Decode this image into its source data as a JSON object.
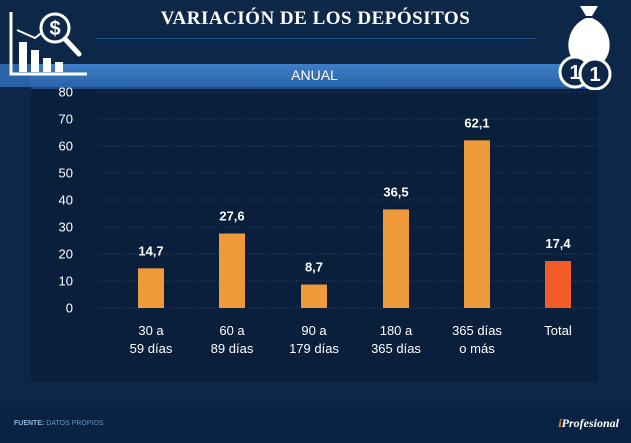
{
  "header": {
    "title": "VARIACIÓN DE LOS DEPÓSITOS",
    "subtitle": "ANUAL"
  },
  "footer": {
    "source_label": "FUENTE:",
    "source_text": "DATOS PROPIOS",
    "logo_prefix": "i",
    "logo_text": "Profesional"
  },
  "colors": {
    "bar": "#ef9a3a",
    "highlight": "#f25c26",
    "background": "#0d2748"
  },
  "chart_data": {
    "type": "bar",
    "title": "VARIACIÓN DE LOS DEPÓSITOS",
    "subtitle": "ANUAL",
    "xlabel": "",
    "ylabel": "",
    "ylim": [
      0,
      80
    ],
    "yticks": [
      0,
      10,
      20,
      30,
      40,
      50,
      60,
      70,
      80
    ],
    "grid": true,
    "categories": [
      [
        "30 a",
        "59 días"
      ],
      [
        "60 a",
        "89 días"
      ],
      [
        "90 a",
        "179 días"
      ],
      [
        "180 a",
        "365 días"
      ],
      [
        "365 días",
        "o más"
      ],
      [
        "Total"
      ]
    ],
    "values": [
      14.7,
      27.6,
      8.7,
      36.5,
      62.1,
      17.4
    ],
    "value_labels": [
      "14,7",
      "27,6",
      "8,7",
      "36,5",
      "62,1",
      "17,4"
    ],
    "highlight_index": 5
  }
}
